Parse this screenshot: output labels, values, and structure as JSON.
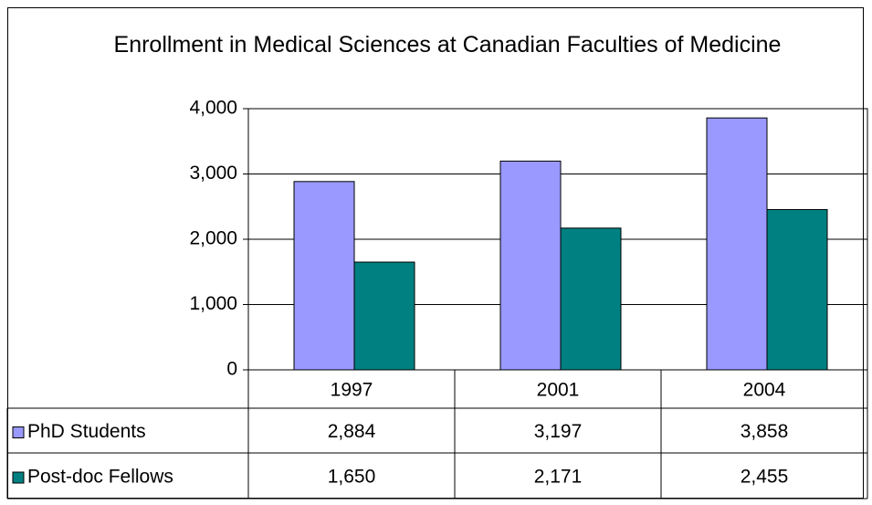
{
  "chart_data": {
    "type": "bar",
    "title": "Enrollment in Medical Sciences at Canadian Faculties of Medicine",
    "categories": [
      "1997",
      "2001",
      "2004"
    ],
    "series": [
      {
        "name": "PhD Students",
        "color": "#9999ff",
        "values": [
          2884,
          3197,
          3858
        ],
        "value_labels": [
          "2,884",
          "3,197",
          "3,858"
        ]
      },
      {
        "name": "Post-doc Fellows",
        "color": "#008080",
        "values": [
          1650,
          2171,
          2455
        ],
        "value_labels": [
          "1,650",
          "2,171",
          "2,455"
        ]
      }
    ],
    "ylim": [
      0,
      4000
    ],
    "yticks": [
      0,
      {
        "value": 1000,
        "label": "1,000"
      },
      {
        "value": 2000,
        "label": "2,000"
      },
      {
        "value": 3000,
        "label": "3,000"
      },
      {
        "value": 4000,
        "label": "4,000"
      }
    ],
    "grid": true
  }
}
